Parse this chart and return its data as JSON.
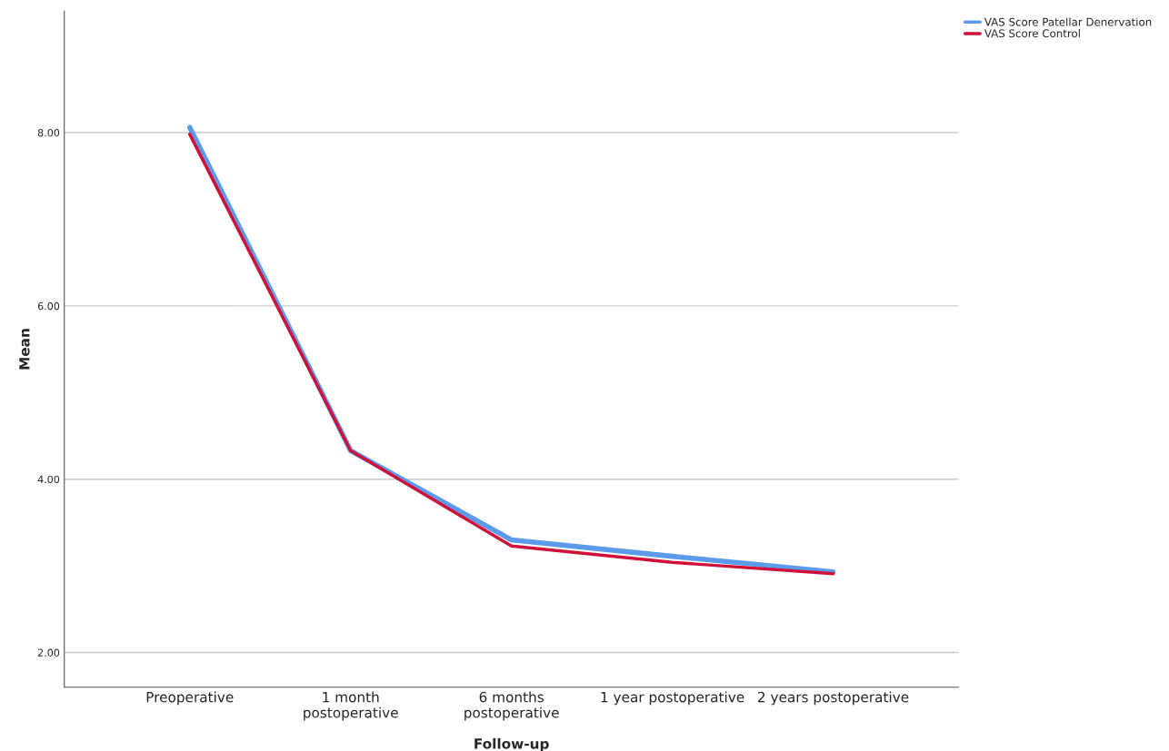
{
  "chart_data": {
    "type": "line",
    "xlabel": "Follow-up",
    "ylabel": "Mean",
    "categories": [
      "Preoperative",
      "1 month\npostoperative",
      "6 months\npostoperative",
      "1 year postoperative",
      "2 years postoperative"
    ],
    "series": [
      {
        "name": "VAS Score Patellar Denervation",
        "color": "#5b9bea",
        "values": [
          8.06,
          4.33,
          3.3,
          3.11,
          2.93
        ]
      },
      {
        "name": "VAS Score Control",
        "color": "#d0103a",
        "values": [
          7.98,
          4.33,
          3.23,
          3.04,
          2.91
        ]
      }
    ],
    "ylim": [
      1.6,
      9.4
    ],
    "yticks": [
      {
        "value": 2,
        "label": "2.00"
      },
      {
        "value": 4,
        "label": "4.00"
      },
      {
        "value": 6,
        "label": "6.00"
      },
      {
        "value": 8,
        "label": "8.00"
      }
    ],
    "grid": "y",
    "legend": "top right",
    "marker": "none",
    "line_style": "solid"
  }
}
